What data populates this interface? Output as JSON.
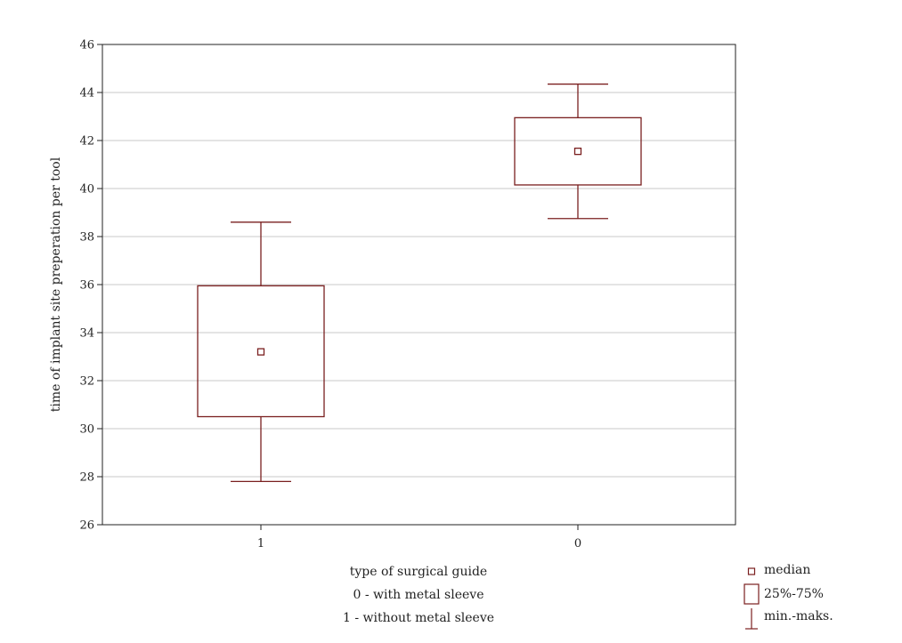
{
  "chart_data": {
    "type": "box",
    "title": "",
    "ylabel": "time of implant site preperation per tool",
    "xlabel": "type of surgical guide",
    "x_caption_lines": [
      "0 - with metal sleeve",
      "1 - without metal sleeve"
    ],
    "ylim": [
      26,
      46
    ],
    "yticks": [
      26,
      28,
      30,
      32,
      34,
      36,
      38,
      40,
      42,
      44,
      46
    ],
    "grid": true,
    "color": "#7a1f1f",
    "categories": [
      "1",
      "0"
    ],
    "boxes": [
      {
        "category": "1",
        "min": 27.8,
        "q1": 30.5,
        "median": 33.2,
        "q3": 35.95,
        "max": 38.6
      },
      {
        "category": "0",
        "min": 38.75,
        "q1": 40.15,
        "median": 41.55,
        "q3": 42.95,
        "max": 44.35
      }
    ],
    "legend": [
      {
        "symbol": "median",
        "label": "median"
      },
      {
        "symbol": "box",
        "label": "25%-75%"
      },
      {
        "symbol": "whisker",
        "label": "min.-maks."
      }
    ],
    "legend_position": "bottom-right"
  }
}
